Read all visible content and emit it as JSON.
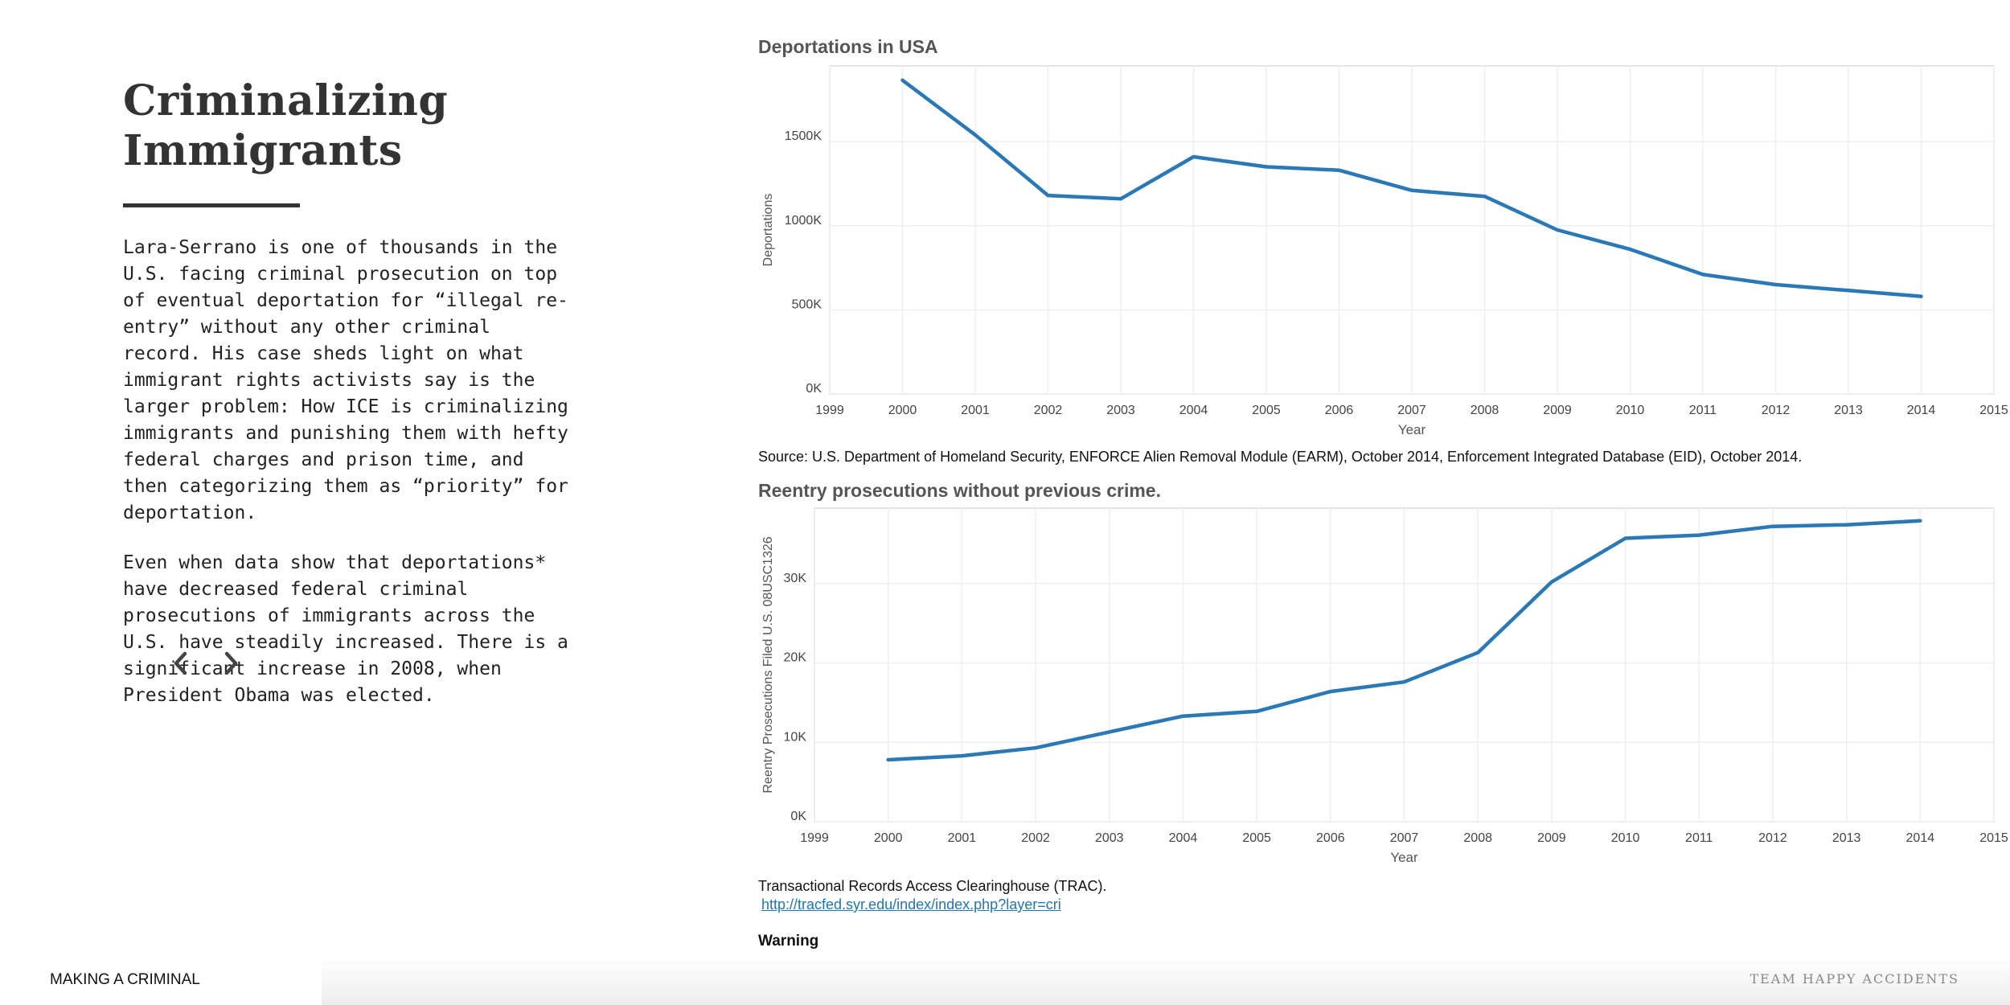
{
  "article": {
    "title_line1": "Criminalizing",
    "title_line2": "Immigrants",
    "paragraph1": "Lara-Serrano is one of thousands in the U.S. facing criminal prosecution on top of eventual deportation for “illegal re-entry” without any other criminal record. His case sheds light on what immigrant rights activists say is the larger problem: How ICE is criminalizing immigrants and punishing them with hefty federal charges and prison time, and then categorizing them as “priority” for deportation.",
    "paragraph2": "Even when data show that deportations* have decreased federal criminal prosecutions of immigrants across the U.S. have steadily increased. There is a significant increase in 2008, when President Obama was elected."
  },
  "nav": {
    "prev_icon": "chevron-left-icon",
    "next_icon": "chevron-right-icon"
  },
  "chart_data": [
    {
      "type": "line",
      "title": "Deportations in USA",
      "xlabel": "Year",
      "ylabel": "Deportations",
      "x_ticks": [
        "1999",
        "2000",
        "2001",
        "2002",
        "2003",
        "2004",
        "2005",
        "2006",
        "2007",
        "2008",
        "2009",
        "2010",
        "2011",
        "2012",
        "2013",
        "2014",
        "2015"
      ],
      "y_ticks": [
        "0K",
        "500K",
        "1000K",
        "1500K"
      ],
      "xlim": [
        1999,
        2015
      ],
      "ylim": [
        0,
        1950000
      ],
      "grid": true,
      "color": "#2a78b5",
      "x": [
        2000,
        2001,
        2002,
        2003,
        2004,
        2005,
        2006,
        2007,
        2008,
        2009,
        2010,
        2011,
        2012,
        2013,
        2014
      ],
      "values": [
        1865000,
        1540000,
        1180000,
        1160000,
        1410000,
        1350000,
        1330000,
        1210000,
        1175000,
        975000,
        860000,
        710000,
        650000,
        615000,
        580000
      ],
      "source": "Source: U.S. Department of Homeland Security, ENFORCE Alien Removal Module (EARM), October 2014, Enforcement Integrated Database (EID), October 2014."
    },
    {
      "type": "line",
      "title": "Reentry prosecutions without previous crime.",
      "xlabel": "Year",
      "ylabel": "Reentry Prosecutions Filed U.S. 08USC1326",
      "x_ticks": [
        "1999",
        "2000",
        "2001",
        "2002",
        "2003",
        "2004",
        "2005",
        "2006",
        "2007",
        "2008",
        "2009",
        "2010",
        "2011",
        "2012",
        "2013",
        "2014",
        "2015"
      ],
      "y_ticks": [
        "0K",
        "10K",
        "20K",
        "30K"
      ],
      "xlim": [
        1999,
        2015
      ],
      "ylim": [
        0,
        39500
      ],
      "grid": true,
      "color": "#2a78b5",
      "x": [
        2000,
        2001,
        2002,
        2003,
        2004,
        2005,
        2006,
        2007,
        2008,
        2009,
        2010,
        2011,
        2012,
        2013,
        2014
      ],
      "values": [
        7800,
        8300,
        9300,
        11300,
        13300,
        13900,
        16400,
        17600,
        21300,
        30200,
        35700,
        36100,
        37200,
        37400,
        37900
      ],
      "source": "Transactional Records Access Clearinghouse (TRAC).",
      "link": "http://tracfed.syr.edu/index/index.php?layer=cri"
    }
  ],
  "warning": "Warning",
  "footer": {
    "left": "MAKING A CRIMINAL",
    "right": "TEAM HAPPY ACCIDENTS"
  }
}
